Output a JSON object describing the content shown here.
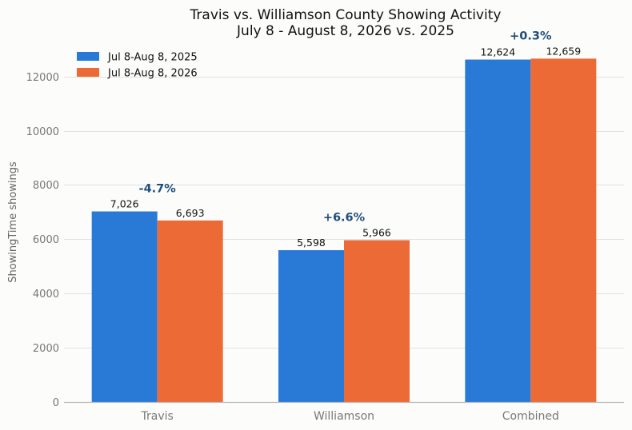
{
  "chart_data": {
    "type": "bar",
    "title": "Travis vs. Williamson County Showing Activity",
    "subtitle": "July 8 - August 8, 2026 vs. 2025",
    "xlabel": "",
    "ylabel": "ShowingTime showings",
    "ylim": [
      0,
      13200
    ],
    "yticks": [
      0,
      2000,
      4000,
      6000,
      8000,
      10000,
      12000
    ],
    "grid": true,
    "legend_position": "top-left",
    "categories": [
      "Travis",
      "Williamson",
      "Combined"
    ],
    "series": [
      {
        "name": "Jul 8-Aug 8, 2025",
        "color": "#2979d6",
        "values": [
          7026,
          5598,
          12624
        ],
        "labels": [
          "7,026",
          "5,598",
          "12,624"
        ]
      },
      {
        "name": "Jul 8-Aug 8, 2026",
        "color": "#ec6a36",
        "values": [
          6693,
          5966,
          12659
        ],
        "labels": [
          "6,693",
          "5,966",
          "12,659"
        ]
      }
    ],
    "annotations": [
      "-4.7%",
      "+6.6%",
      "+0.3%"
    ]
  }
}
